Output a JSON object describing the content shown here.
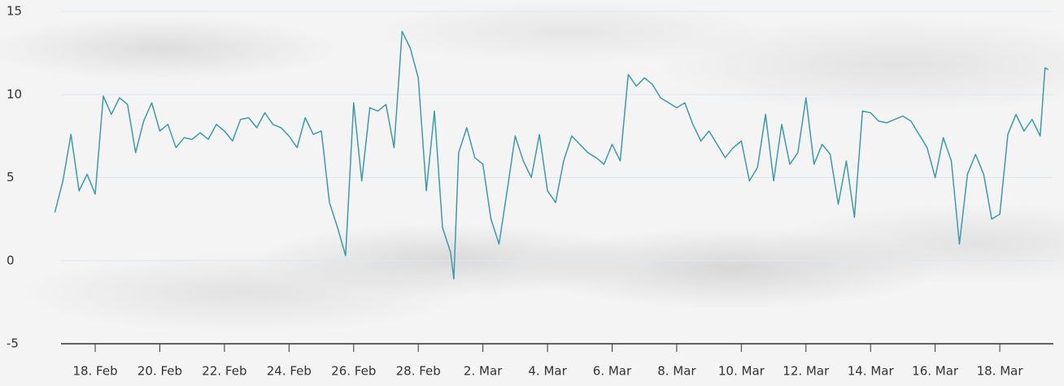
{
  "chart_data": {
    "type": "line",
    "x": [
      16.75,
      17,
      17.25,
      17.5,
      17.75,
      18,
      18.25,
      18.5,
      18.75,
      19,
      19.25,
      19.5,
      19.75,
      20,
      20.25,
      20.5,
      20.75,
      21,
      21.25,
      21.5,
      21.75,
      22,
      22.25,
      22.5,
      22.75,
      23,
      23.25,
      23.5,
      23.75,
      24,
      24.25,
      24.5,
      24.75,
      25,
      25.25,
      25.5,
      25.75,
      26,
      26.25,
      26.5,
      26.75,
      27,
      27.25,
      27.5,
      27.75,
      28,
      28.25,
      28.5,
      28.75,
      29,
      29.1,
      29.25,
      29.5,
      29.75,
      30,
      30.25,
      30.5,
      30.75,
      31,
      31.25,
      31.5,
      31.75,
      32,
      32.25,
      32.5,
      32.75,
      33,
      33.25,
      33.5,
      33.75,
      34,
      34.25,
      34.5,
      34.75,
      35,
      35.25,
      35.5,
      35.75,
      36,
      36.25,
      36.5,
      36.75,
      37,
      37.25,
      37.5,
      37.75,
      38,
      38.25,
      38.5,
      38.75,
      39,
      39.25,
      39.5,
      39.75,
      40,
      40.25,
      40.5,
      40.75,
      41,
      41.25,
      41.5,
      41.75,
      42,
      42.25,
      42.5,
      42.75,
      43,
      43.25,
      43.5,
      43.75,
      44,
      44.25,
      44.5,
      44.75,
      45,
      45.25,
      45.5,
      45.75,
      46,
      46.25,
      46.5,
      46.75,
      47,
      47.25,
      47.4,
      47.5
    ],
    "series": [
      {
        "color": "#3b9bab",
        "values": [
          2.9,
          4.8,
          7.6,
          4.2,
          5.2,
          4.0,
          9.9,
          8.8,
          9.8,
          9.4,
          6.5,
          8.4,
          9.5,
          7.8,
          8.2,
          6.8,
          7.4,
          7.3,
          7.7,
          7.3,
          8.2,
          7.8,
          7.2,
          8.5,
          8.6,
          8.0,
          8.9,
          8.2,
          8.0,
          7.5,
          6.8,
          8.6,
          7.6,
          7.8,
          3.5,
          2.0,
          0.3,
          9.5,
          4.8,
          9.2,
          9.0,
          9.4,
          6.8,
          13.8,
          12.8,
          11.0,
          4.2,
          9.0,
          2.0,
          0.5,
          -1.1,
          6.5,
          8.0,
          6.2,
          5.8,
          2.5,
          1.0,
          4.2,
          7.5,
          6.0,
          5.0,
          7.6,
          4.2,
          3.5,
          6.0,
          7.5,
          7.0,
          6.5,
          6.2,
          5.8,
          7.0,
          6.0,
          11.2,
          10.5,
          11.0,
          10.6,
          9.8,
          9.5,
          9.2,
          9.5,
          8.2,
          7.2,
          7.8,
          7.0,
          6.2,
          6.8,
          7.2,
          4.8,
          5.6,
          8.8,
          4.8,
          8.2,
          5.8,
          6.5,
          9.8,
          5.8,
          7.0,
          6.4,
          3.4,
          6.0,
          2.6,
          9.0,
          8.9,
          8.4,
          8.3,
          8.5,
          8.7,
          8.4,
          7.6,
          6.8,
          5.0,
          7.4,
          6.0,
          1.0,
          5.2,
          6.4,
          5.2,
          2.5,
          2.8,
          7.6,
          8.8,
          7.8,
          8.5,
          7.5,
          11.6,
          11.5
        ]
      }
    ],
    "xlim": [
      16.74,
      47.66
    ],
    "xticks": [
      {
        "value": 18,
        "label": "18. Feb"
      },
      {
        "value": 20,
        "label": "20. Feb"
      },
      {
        "value": 22,
        "label": "22. Feb"
      },
      {
        "value": 24,
        "label": "24. Feb"
      },
      {
        "value": 26,
        "label": "26. Feb"
      },
      {
        "value": 28,
        "label": "28. Feb"
      },
      {
        "value": 30,
        "label": "2. Mar"
      },
      {
        "value": 32,
        "label": "4. Mar"
      },
      {
        "value": 34,
        "label": "6. Mar"
      },
      {
        "value": 36,
        "label": "8. Mar"
      },
      {
        "value": 38,
        "label": "10. Mar"
      },
      {
        "value": 40,
        "label": "12. Mar"
      },
      {
        "value": 42,
        "label": "14. Mar"
      },
      {
        "value": 44,
        "label": "16. Mar"
      },
      {
        "value": 46,
        "label": "18. Mar"
      }
    ],
    "ylim": [
      -5,
      15
    ],
    "yticks": [
      -5,
      0,
      5,
      10,
      15
    ],
    "grid": true
  }
}
